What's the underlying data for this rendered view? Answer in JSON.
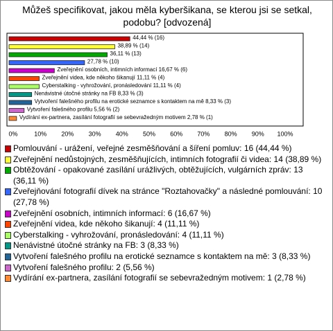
{
  "chart_data": {
    "type": "bar",
    "orientation": "horizontal",
    "title": "Můžeš specifikovat, jakou měla kyberšikana, se kterou jsi se setkal, podobu? [odvozená]",
    "values": [
      44.44,
      38.89,
      36.11,
      27.78,
      16.67,
      11.11,
      11.11,
      8.33,
      8.33,
      5.56,
      2.78
    ],
    "value_labels": [
      "44,44 % (16)",
      "38,89 % (14)",
      "36,11 % (13)",
      "27,78 % (10)",
      "Zveřejnění osobních, intimních informací 16,67 % (6)",
      "Zveřejnění videa, kde někoho šikanují 11,11 % (4)",
      "Cyberstalking - vyhrožování, pronásledování 11,11 % (4)",
      "Nenávistné útočné stránky na FB 8,33 % (3)",
      "Vytvoření falešného profilu na erotické seznamce s kontaktem na mě 8,33 % (3)",
      "Vytvoření falešného profilu 5,56 % (2)",
      "Vydírání ex-partnera, zasílání fotografií se sebevražedným motivem 2,78 % (1)"
    ],
    "colors": [
      "#cc0000",
      "#ffff33",
      "#00aa00",
      "#3366ff",
      "#cc00cc",
      "#ff4400",
      "#aaff66",
      "#009988",
      "#226699",
      "#cc66cc",
      "#ff8833"
    ],
    "legend": [
      "Pomlouvání - urážení, veřejné zesměšňování a šíření pomluv: 16 (44,44 %)",
      "Zveřejnění nedůstojných, zesměšňujících, intimních fotografií či videa: 14 (38,89 %)",
      "Obtěžování - opakované zasílání urážlivých, obtěžujících, vulgárních zpráv: 13 (36,11 %)",
      "Zveřejňování fotografií dívek na stránce \"Roztahovačky\" a následné pomlouvání: 10 (27,78 %)",
      "Zveřejnění osobních, intimních informací: 6 (16,67 %)",
      "Zveřejnění videa, kde někoho šikanují: 4 (11,11 %)",
      "Cyberstalking - vyhrožování, pronásledování: 4 (11,11 %)",
      "Nenávistné útočné stránky na FB: 3 (8,33 %)",
      "Vytvoření falešného profilu na erotické seznamce s kontaktem na mě: 3 (8,33 %)",
      "Vytvoření falešného profilu: 2 (5,56 %)",
      "Vydírání ex-partnera, zasílání fotografií se sebevražedným motivem: 1 (2,78 %)"
    ],
    "xlim": [
      0,
      100
    ],
    "xticks": [
      {
        "value": 0,
        "label": "0%"
      },
      {
        "value": 10,
        "label": "10%"
      },
      {
        "value": 20,
        "label": "20%"
      },
      {
        "value": 30,
        "label": "30%"
      },
      {
        "value": 40,
        "label": "40%"
      },
      {
        "value": 50,
        "label": "50%"
      },
      {
        "value": 60,
        "label": "60%"
      },
      {
        "value": 70,
        "label": "70%"
      },
      {
        "value": 80,
        "label": "80%"
      },
      {
        "value": 90,
        "label": "90%"
      },
      {
        "value": 100,
        "label": "100%"
      }
    ]
  }
}
